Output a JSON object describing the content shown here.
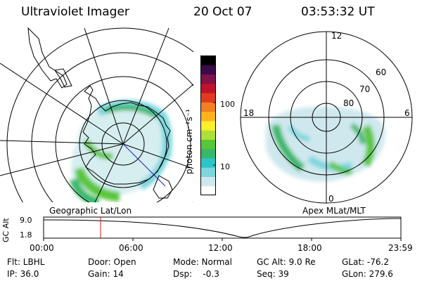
{
  "header": {
    "instrument": "Ultraviolet Imager",
    "date": "20 Oct 07",
    "time": "03:53:32 UT"
  },
  "left_panel": {
    "caption": "Geographic Lat/Lon"
  },
  "right_panel": {
    "caption": "Apex MLat/MLT",
    "mlt_labels": [
      "12",
      "18",
      "6",
      "0"
    ],
    "lat_labels": [
      "60",
      "70",
      "80"
    ]
  },
  "colorbar": {
    "unit_label": "photon cm⁻²s⁻¹",
    "ticks": [
      "100",
      "10"
    ],
    "scale": "log",
    "colors": [
      "#ffffff",
      "#cfe8ee",
      "#7cd6dc",
      "#2ec5c9",
      "#37b86a",
      "#58c63a",
      "#aee036",
      "#ffef2a",
      "#ffb21c",
      "#f08020",
      "#e03a20",
      "#c0122a",
      "#80124a",
      "#3a0a4a",
      "#000000"
    ]
  },
  "timeline": {
    "ylabel": "GC Alt",
    "y_ticks": [
      "9.0",
      "1.8"
    ],
    "x_ticks": [
      "00:00",
      "06:00",
      "12:00",
      "18:00",
      "23:59"
    ],
    "current_marker_color": "#d01818"
  },
  "footer": {
    "row1": {
      "filter": "Flt: LBHL",
      "door": "Door: Open",
      "mode": "Mode: Normal",
      "gcalt": "GC Alt: 9.0 Re",
      "glat": "GLat: -76.2"
    },
    "row2": {
      "ip": "IP: 36.0",
      "gain": "Gain: 14",
      "dsp": "Dsp:    -0.3",
      "seq": "Seq: 39",
      "glon": "GLon: 279.6"
    }
  }
}
